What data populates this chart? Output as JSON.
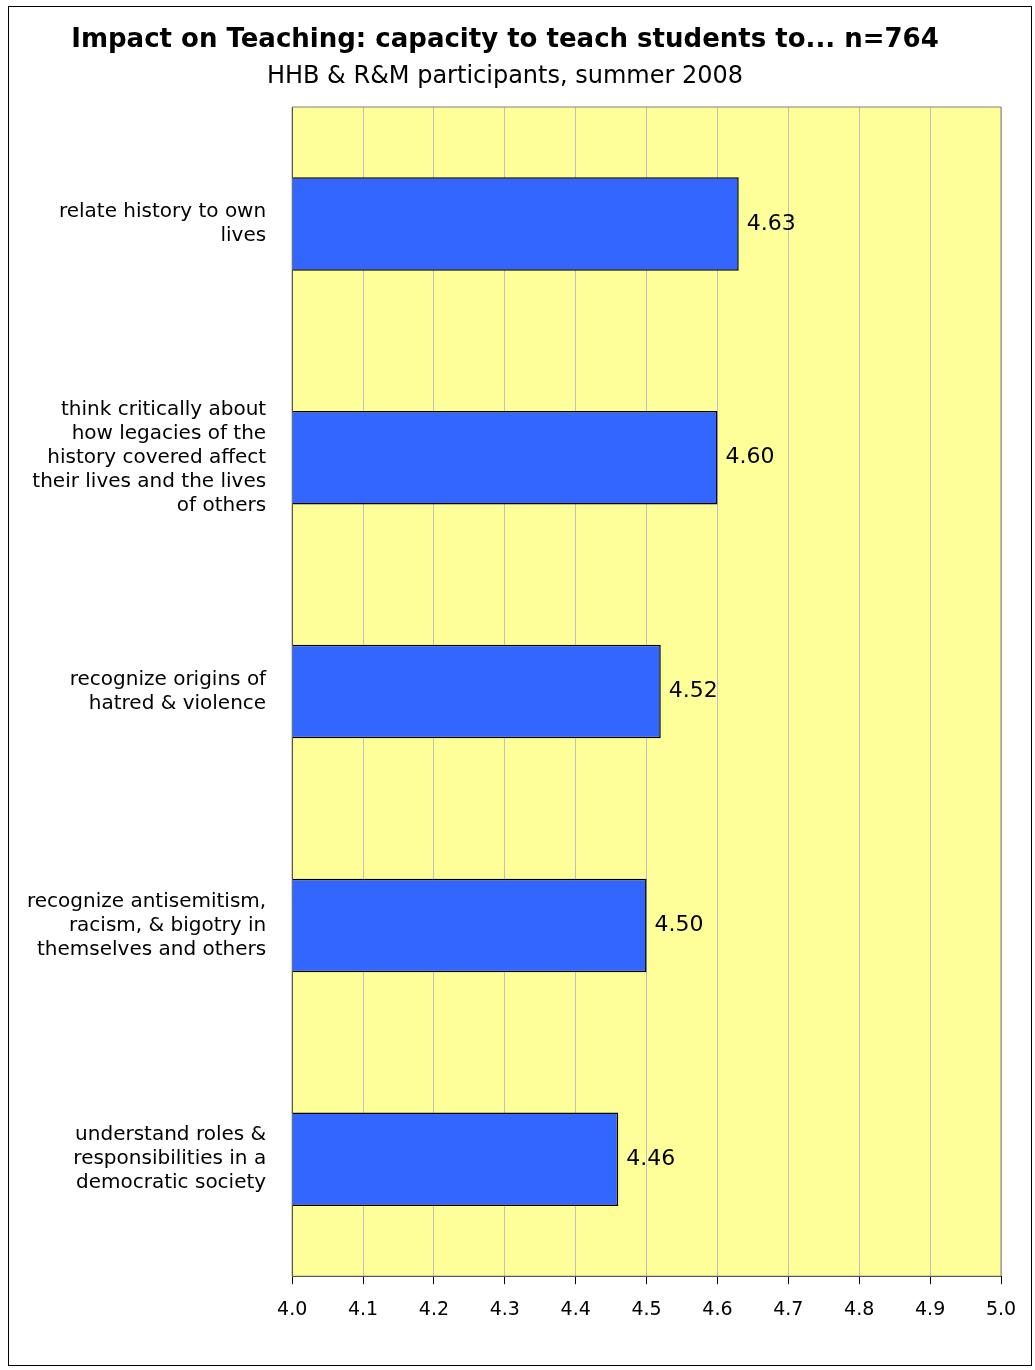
{
  "chart_data": {
    "type": "bar",
    "orientation": "horizontal",
    "title": "Impact on Teaching: capacity to teach students to... n=764",
    "subtitle": "HHB & R&M participants, summer 2008",
    "categories": [
      "relate history to own lives",
      "think critically about how legacies of the history covered affect their lives and the lives of others",
      "recognize origins of hatred & violence",
      "recognize antisemitism, racism, & bigotry in themselves and others",
      "understand roles & responsibilities in a democratic society"
    ],
    "values": [
      4.63,
      4.6,
      4.52,
      4.5,
      4.46
    ],
    "value_labels": [
      "4.63",
      "4.60",
      "4.52",
      "4.50",
      "4.46"
    ],
    "color": "#3366ff",
    "xlim": [
      4.0,
      5.0
    ],
    "xticks": [
      {
        "value": 4.0,
        "label": "4.0"
      },
      {
        "value": 4.1,
        "label": "4.1"
      },
      {
        "value": 4.2,
        "label": "4.2"
      },
      {
        "value": 4.3,
        "label": "4.3"
      },
      {
        "value": 4.4,
        "label": "4.4"
      },
      {
        "value": 4.5,
        "label": "4.5"
      },
      {
        "value": 4.6,
        "label": "4.6"
      },
      {
        "value": 4.7,
        "label": "4.7"
      },
      {
        "value": 4.8,
        "label": "4.8"
      },
      {
        "value": 4.9,
        "label": "4.9"
      },
      {
        "value": 5.0,
        "label": "5.0"
      }
    ],
    "grid": "x",
    "legend": false
  }
}
